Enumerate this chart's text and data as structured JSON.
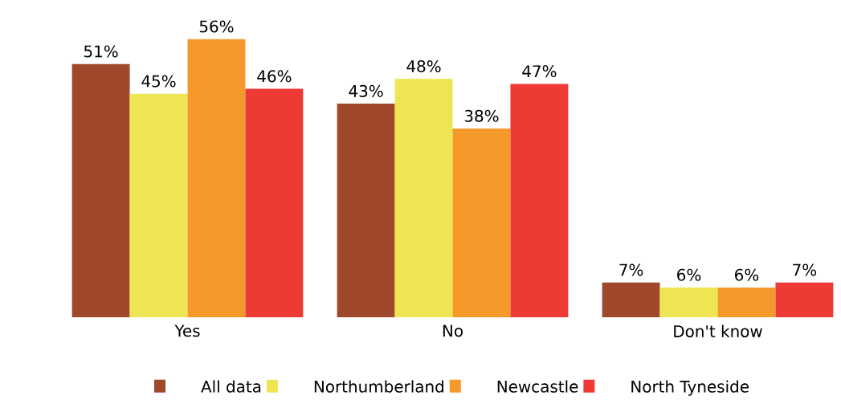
{
  "chart_data": {
    "type": "bar",
    "categories": [
      "Yes",
      "No",
      "Don't know"
    ],
    "series": [
      {
        "name": "All data",
        "color": "#a0482c",
        "values": [
          51,
          43,
          7
        ],
        "value_labels": [
          "51%",
          "43%",
          "7%"
        ]
      },
      {
        "name": "Northumberland",
        "color": "#ede652",
        "values": [
          45,
          48,
          6
        ],
        "value_labels": [
          "45%",
          "48%",
          "6%"
        ]
      },
      {
        "name": "Newcastle",
        "color": "#f59a2a",
        "values": [
          56,
          38,
          6
        ],
        "value_labels": [
          "56%",
          "38%",
          "6%"
        ]
      },
      {
        "name": "North Tyneside",
        "color": "#ee3a35",
        "values": [
          46,
          47,
          7
        ],
        "value_labels": [
          "46%",
          "47%",
          "7%"
        ]
      }
    ],
    "legend": "bottom",
    "grid": false
  }
}
